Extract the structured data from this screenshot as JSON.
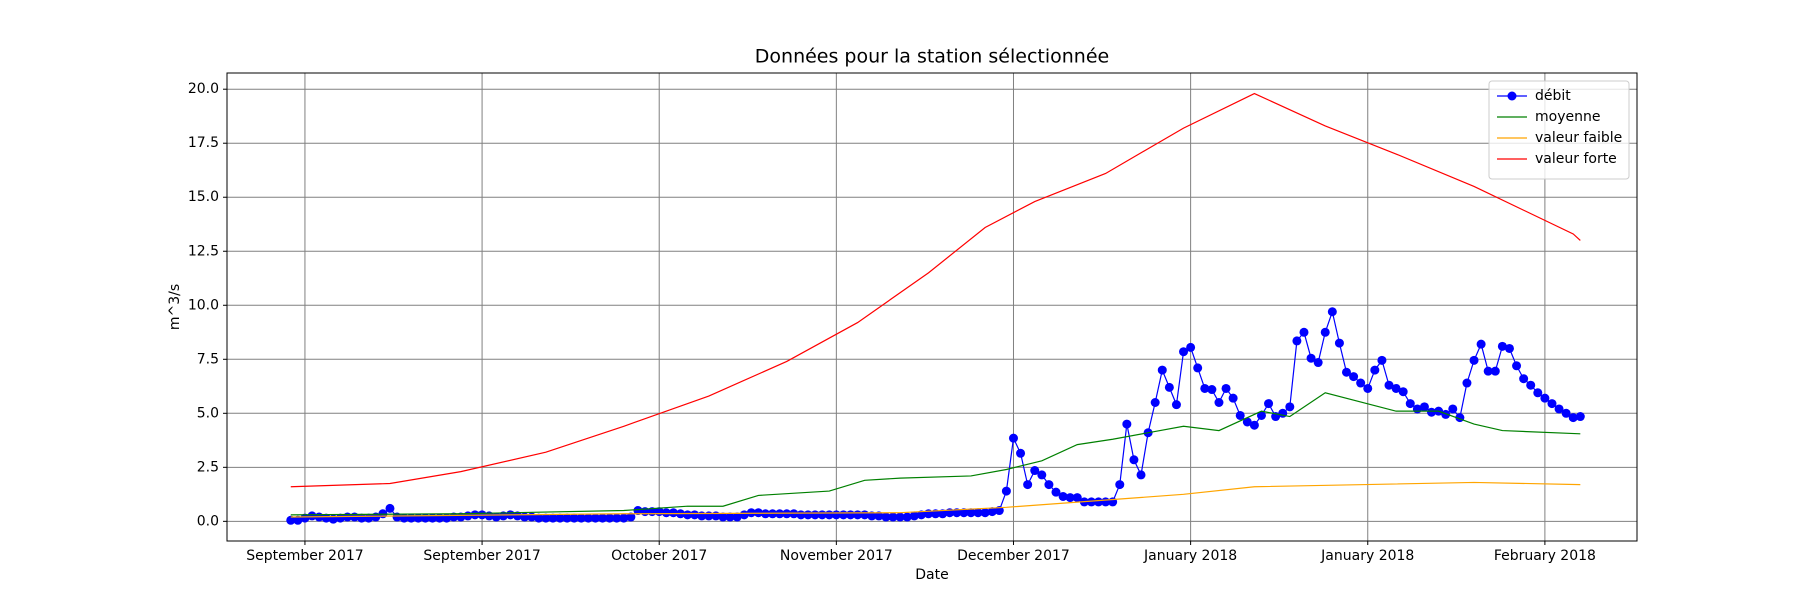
{
  "chart_data": {
    "type": "line",
    "title": "Données pour la station sélectionnée",
    "x_label": "Date",
    "y_label": "m^3/s",
    "xlim": [
      -11,
      188
    ],
    "ylim": [
      -0.91,
      20.75
    ],
    "xticks": [
      {
        "value": 0,
        "label": "September 2017"
      },
      {
        "value": 25,
        "label": "September 2017"
      },
      {
        "value": 50,
        "label": "October 2017"
      },
      {
        "value": 75,
        "label": "November 2017"
      },
      {
        "value": 100,
        "label": "December 2017"
      },
      {
        "value": 125,
        "label": "January 2018"
      },
      {
        "value": 150,
        "label": "January 2018"
      },
      {
        "value": 175,
        "label": "February 2018"
      }
    ],
    "yticks": [
      {
        "value": 0,
        "label": "0.0"
      },
      2.5,
      {
        "value": 5,
        "label": "5.0"
      },
      7.5,
      {
        "value": 10,
        "label": "10.0"
      },
      12.5,
      {
        "value": 15,
        "label": "15.0"
      },
      17.5,
      {
        "value": 20,
        "label": "20.0"
      }
    ],
    "grid": true,
    "legend": "upper right",
    "series": [
      {
        "name": "débit",
        "color": "#0000ff",
        "marker": "circle",
        "x": [
          -2,
          -1,
          0,
          1,
          2,
          3,
          4,
          5,
          6,
          7,
          8,
          9,
          10,
          11,
          12,
          13,
          14,
          15,
          16,
          17,
          18,
          19,
          20,
          21,
          22,
          23,
          24,
          25,
          26,
          27,
          28,
          29,
          30,
          31,
          32,
          33,
          34,
          35,
          36,
          37,
          38,
          39,
          40,
          41,
          42,
          43,
          44,
          45,
          46,
          47,
          48,
          49,
          50,
          51,
          52,
          53,
          54,
          55,
          56,
          57,
          58,
          59,
          60,
          61,
          62,
          63,
          64,
          65,
          66,
          67,
          68,
          69,
          70,
          71,
          72,
          73,
          74,
          75,
          76,
          77,
          78,
          79,
          80,
          81,
          82,
          83,
          84,
          85,
          86,
          87,
          88,
          89,
          90,
          91,
          92,
          93,
          94,
          95,
          96,
          97,
          98,
          99,
          100,
          101,
          102,
          103,
          104,
          105,
          106,
          107,
          108,
          109,
          110,
          111,
          112,
          113,
          114,
          115,
          116,
          117,
          118,
          119,
          120,
          121,
          122,
          123,
          124,
          125,
          126,
          127,
          128,
          129,
          130,
          131,
          132,
          133,
          134,
          135,
          136,
          137,
          138,
          139,
          140,
          141,
          142,
          143,
          144,
          145,
          146,
          147,
          148,
          149,
          150,
          151,
          152,
          153,
          154,
          155,
          156,
          157,
          158,
          159,
          160,
          161,
          162,
          163,
          164,
          165,
          166,
          167,
          168,
          169,
          170,
          171,
          172,
          173,
          174,
          175,
          176,
          177,
          178,
          179,
          180
        ],
        "values": [
          0.05,
          0.05,
          0.15,
          0.25,
          0.2,
          0.15,
          0.1,
          0.15,
          0.2,
          0.2,
          0.15,
          0.15,
          0.2,
          0.35,
          0.6,
          0.2,
          0.15,
          0.15,
          0.15,
          0.15,
          0.15,
          0.15,
          0.15,
          0.2,
          0.2,
          0.25,
          0.3,
          0.3,
          0.25,
          0.2,
          0.25,
          0.3,
          0.25,
          0.2,
          0.2,
          0.15,
          0.15,
          0.15,
          0.15,
          0.15,
          0.15,
          0.15,
          0.15,
          0.15,
          0.15,
          0.15,
          0.15,
          0.15,
          0.2,
          0.5,
          0.45,
          0.45,
          0.45,
          0.4,
          0.4,
          0.35,
          0.3,
          0.3,
          0.25,
          0.25,
          0.25,
          0.2,
          0.2,
          0.2,
          0.3,
          0.4,
          0.4,
          0.35,
          0.35,
          0.35,
          0.35,
          0.35,
          0.3,
          0.3,
          0.3,
          0.3,
          0.3,
          0.3,
          0.3,
          0.3,
          0.3,
          0.3,
          0.25,
          0.25,
          0.2,
          0.2,
          0.2,
          0.2,
          0.25,
          0.3,
          0.35,
          0.35,
          0.35,
          0.4,
          0.4,
          0.4,
          0.4,
          0.4,
          0.4,
          0.45,
          0.5,
          1.4,
          3.85,
          3.15,
          1.7,
          2.35,
          2.15,
          1.7,
          1.35,
          1.15,
          1.1,
          1.1,
          0.9,
          0.9,
          0.9,
          0.9,
          0.9,
          1.7,
          4.5,
          2.85,
          2.15,
          4.1,
          5.5,
          7.0,
          6.2,
          5.4,
          7.85,
          8.05,
          7.1,
          6.15,
          6.1,
          5.5,
          6.15,
          5.7,
          4.9,
          4.6,
          4.45,
          4.9,
          5.45,
          4.85,
          5.0,
          5.3,
          8.35,
          8.75,
          7.55,
          7.35,
          8.75,
          9.7,
          8.25,
          6.9,
          6.7,
          6.4,
          6.15,
          7.0,
          7.45,
          6.3,
          6.15,
          6.0,
          5.45,
          5.2,
          5.3,
          5.05,
          5.1,
          4.95,
          5.2,
          4.8,
          6.4,
          7.45,
          8.2,
          6.95,
          6.95,
          8.1,
          8.0,
          7.2,
          6.6,
          6.3,
          5.95,
          5.7,
          5.45,
          5.2,
          5.0,
          4.8,
          4.85
        ]
      },
      {
        "name": "moyenne",
        "color": "#008000",
        "x": [
          -2,
          22,
          45,
          54,
          59,
          64,
          74,
          79,
          84,
          94,
          99,
          104,
          109,
          114,
          124,
          129,
          135,
          139,
          144,
          154,
          160,
          165,
          169,
          180
        ],
        "values": [
          0.3,
          0.35,
          0.5,
          0.7,
          0.7,
          1.2,
          1.4,
          1.9,
          2.0,
          2.1,
          2.4,
          2.8,
          3.55,
          3.8,
          4.4,
          4.2,
          5.1,
          4.85,
          5.95,
          5.1,
          5.1,
          4.5,
          4.2,
          4.05
        ]
      },
      {
        "name": "valeur faible",
        "color": "#ffa500",
        "x": [
          -2,
          45,
          84,
          99,
          124,
          134,
          165,
          180
        ],
        "values": [
          0.2,
          0.35,
          0.4,
          0.65,
          1.25,
          1.6,
          1.8,
          1.7
        ]
      },
      {
        "name": "valeur forte",
        "color": "#ff0000",
        "x": [
          -2,
          12,
          22,
          34,
          45,
          57,
          68,
          78,
          88,
          96,
          103,
          113,
          124,
          134,
          144,
          154,
          165,
          179,
          180
        ],
        "values": [
          1.6,
          1.75,
          2.3,
          3.2,
          4.4,
          5.8,
          7.4,
          9.2,
          11.5,
          13.6,
          14.8,
          16.1,
          18.2,
          19.8,
          18.3,
          17.0,
          15.5,
          13.3,
          13.0
        ]
      }
    ]
  }
}
